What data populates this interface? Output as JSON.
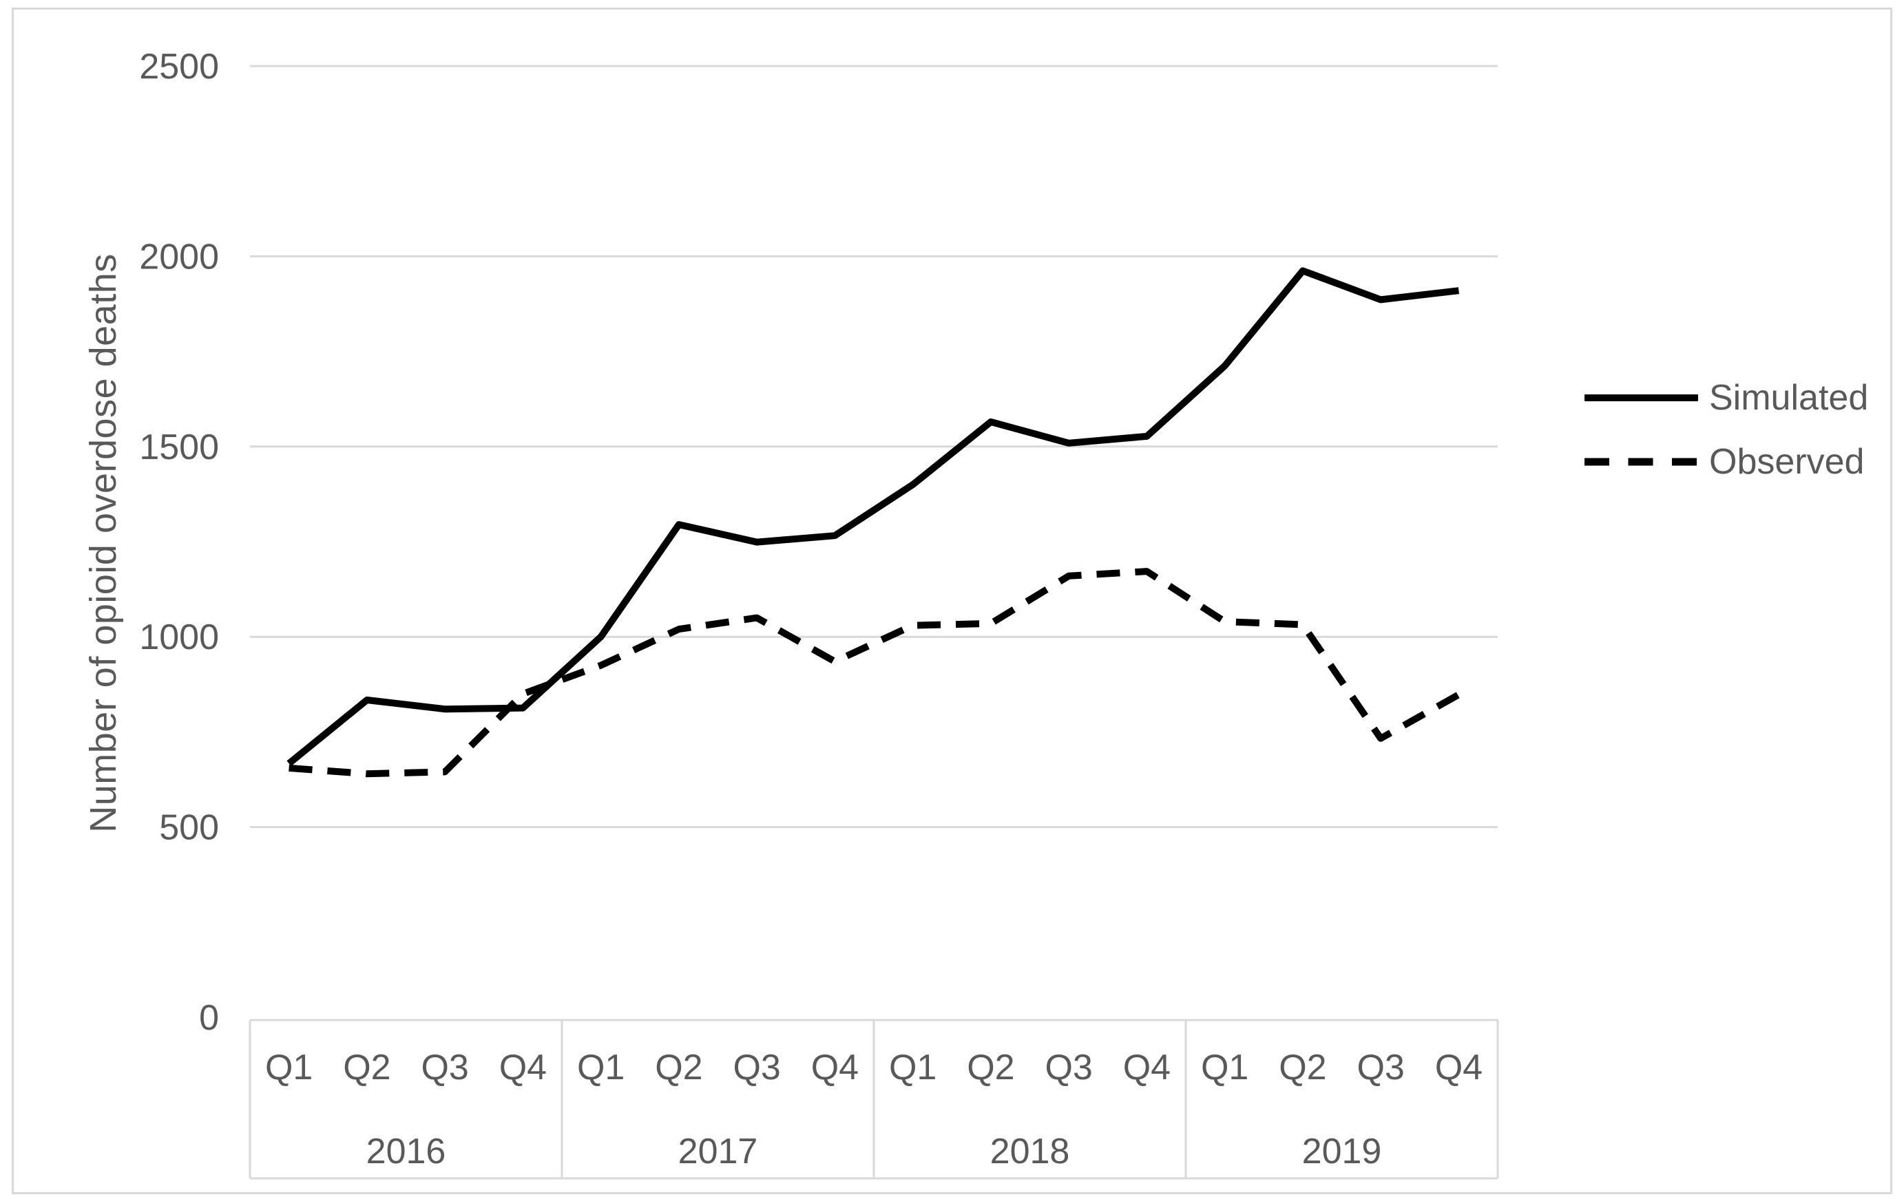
{
  "chart_data": {
    "type": "line",
    "title": "",
    "ylabel": "Number of opioid overdose deaths",
    "xlabel": "",
    "ylim": [
      0,
      2500
    ],
    "yticks": [
      0,
      500,
      1000,
      1500,
      2000,
      2500
    ],
    "grid": "horizontal gridlines at each y tick",
    "legend_position": "right",
    "categories": [
      "Q1",
      "Q2",
      "Q3",
      "Q4",
      "Q1",
      "Q2",
      "Q3",
      "Q4",
      "Q1",
      "Q2",
      "Q3",
      "Q4",
      "Q1",
      "Q2",
      "Q3",
      "Q4"
    ],
    "year_groups": [
      "2016",
      "2017",
      "2018",
      "2019"
    ],
    "series": [
      {
        "name": "Simulated",
        "style": "solid",
        "color": "#000000",
        "values": [
          667,
          834,
          810,
          813,
          1000,
          1295,
          1249,
          1266,
          1400,
          1565,
          1509,
          1527,
          1712,
          1962,
          1886,
          1910
        ]
      },
      {
        "name": "Observed",
        "style": "dashed",
        "color": "#000000",
        "values": [
          655,
          640,
          645,
          850,
          925,
          1020,
          1050,
          935,
          1030,
          1035,
          1160,
          1172,
          1040,
          1032,
          733,
          848
        ]
      }
    ],
    "colors": {
      "text": "#595959",
      "grid": "#d9d9d9",
      "frame": "#d9d9d9",
      "series": "#000000"
    }
  }
}
